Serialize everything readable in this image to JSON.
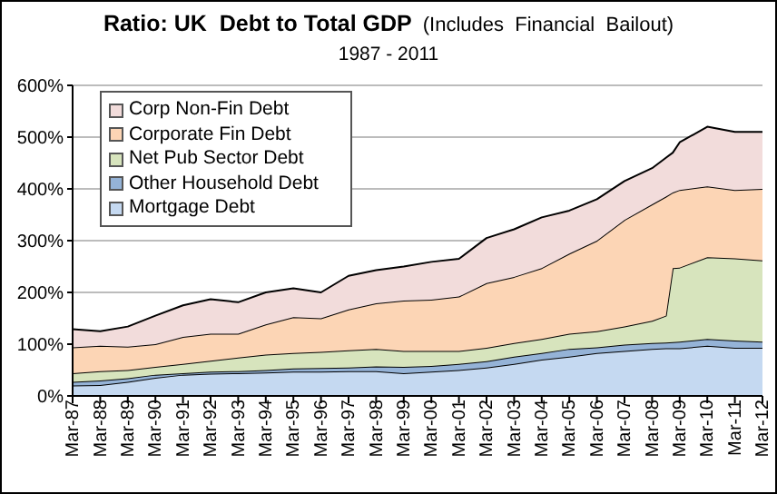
{
  "chart_data": {
    "type": "area",
    "stacked": true,
    "title": "Ratio: UK  Debt to Total GDP",
    "subtitle": "(Includes  Financial  Bailout)",
    "annotations": [
      "1987 - 2011"
    ],
    "x": [
      "1987-03",
      "1988-03",
      "1989-03",
      "1990-03",
      "1991-03",
      "1992-03",
      "1993-03",
      "1994-03",
      "1995-03",
      "1996-03",
      "1997-03",
      "1998-03",
      "1999-03",
      "2000-03",
      "2001-03",
      "2002-03",
      "2003-03",
      "2004-03",
      "2005-03",
      "2006-03",
      "2007-03",
      "2008-03",
      "2008-09",
      "2008-12",
      "2009-03",
      "2010-03",
      "2011-03",
      "2012-03"
    ],
    "xlim": [
      "1987-03",
      "2012-03"
    ],
    "xticks": [
      {
        "value": "1987-03",
        "label": "Mar-87"
      },
      {
        "value": "1988-03",
        "label": "Mar-88"
      },
      {
        "value": "1989-03",
        "label": "Mar-89"
      },
      {
        "value": "1990-03",
        "label": "Mar-90"
      },
      {
        "value": "1991-03",
        "label": "Mar-91"
      },
      {
        "value": "1992-03",
        "label": "Mar-92"
      },
      {
        "value": "1993-03",
        "label": "Mar-93"
      },
      {
        "value": "1994-03",
        "label": "Mar-94"
      },
      {
        "value": "1995-03",
        "label": "Mar-95"
      },
      {
        "value": "1996-03",
        "label": "Mar-96"
      },
      {
        "value": "1997-03",
        "label": "Mar-97"
      },
      {
        "value": "1998-03",
        "label": "Mar-98"
      },
      {
        "value": "1999-03",
        "label": "Mar-99"
      },
      {
        "value": "2000-03",
        "label": "Mar-00"
      },
      {
        "value": "2001-03",
        "label": "Mar-01"
      },
      {
        "value": "2002-03",
        "label": "Mar-02"
      },
      {
        "value": "2003-03",
        "label": "Mar-03"
      },
      {
        "value": "2004-03",
        "label": "Mar-04"
      },
      {
        "value": "2005-03",
        "label": "Mar-05"
      },
      {
        "value": "2006-03",
        "label": "Mar-06"
      },
      {
        "value": "2007-03",
        "label": "Mar-07"
      },
      {
        "value": "2008-03",
        "label": "Mar-08"
      },
      {
        "value": "2009-03",
        "label": "Mar-09"
      },
      {
        "value": "2010-03",
        "label": "Mar-10"
      },
      {
        "value": "2011-03",
        "label": "Mar-11"
      },
      {
        "value": "2012-03",
        "label": "Mar-12"
      }
    ],
    "ylim": [
      0,
      600
    ],
    "yticks": [
      {
        "value": 0,
        "label": "0%"
      },
      {
        "value": 100,
        "label": "100%"
      },
      {
        "value": 200,
        "label": "200%"
      },
      {
        "value": 300,
        "label": "300%"
      },
      {
        "value": 400,
        "label": "400%"
      },
      {
        "value": 500,
        "label": "500%"
      },
      {
        "value": 600,
        "label": "600%"
      }
    ],
    "grid": "y",
    "legend": "top left",
    "series": [
      {
        "name": "Mortgage Debt",
        "color": "#c5d9f1",
        "values": [
          20,
          21,
          27,
          35,
          41,
          43,
          44,
          45,
          47,
          47,
          48,
          48,
          44,
          47,
          50,
          55,
          62,
          70,
          76,
          83,
          87,
          91,
          92,
          92,
          92,
          97,
          93,
          93
        ]
      },
      {
        "name": "Other Household Debt",
        "color": "#95b3d7",
        "values": [
          7,
          9,
          7,
          6,
          3,
          4,
          4,
          5,
          6,
          7,
          7,
          9,
          12,
          11,
          12,
          12,
          14,
          13,
          15,
          11,
          12,
          11,
          11,
          12,
          13,
          13,
          14,
          12
        ]
      },
      {
        "name": "Net Pub Sector Debt",
        "color": "#d7e4bd",
        "values": [
          17,
          18,
          16,
          15,
          18,
          21,
          26,
          30,
          30,
          31,
          33,
          34,
          31,
          29,
          25,
          26,
          26,
          27,
          29,
          31,
          35,
          43,
          52,
          143,
          143,
          158,
          159,
          157
        ]
      },
      {
        "name": "Corporate Fin Debt",
        "color": "#fcd5b5",
        "values": [
          50,
          49,
          45,
          44,
          52,
          52,
          46,
          58,
          69,
          65,
          79,
          88,
          97,
          99,
          105,
          125,
          128,
          137,
          155,
          175,
          206,
          225,
          230,
          146,
          150,
          137,
          132,
          138
        ]
      },
      {
        "name": "Corp Non-Fin Debt",
        "color": "#f2dcdb",
        "values": [
          35,
          28,
          39,
          55,
          61,
          67,
          61,
          62,
          56,
          50,
          65,
          64,
          66,
          73,
          73,
          87,
          92,
          98,
          83,
          80,
          75,
          70,
          75,
          77,
          92,
          115,
          112,
          110
        ]
      }
    ]
  }
}
